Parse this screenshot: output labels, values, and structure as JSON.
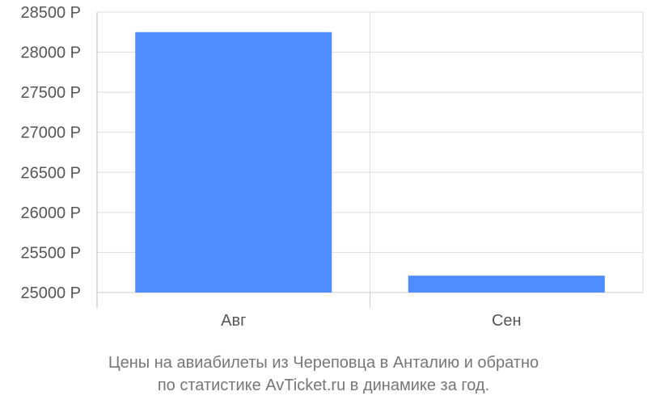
{
  "chart_data": {
    "type": "bar",
    "categories": [
      "Авг",
      "Сен"
    ],
    "values": [
      28250,
      25210
    ],
    "ylim": [
      25000,
      28500
    ],
    "yticks": [
      25000,
      25500,
      26000,
      26500,
      27000,
      27500,
      28000,
      28500
    ],
    "ytick_labels": [
      "25000 Р",
      "25500 Р",
      "26000 Р",
      "26500 Р",
      "27000 Р",
      "27500 Р",
      "28000 Р",
      "28500 Р"
    ],
    "grid": true,
    "bar_color": "#4e8cff",
    "caption_lines": [
      "Цены на авиабилеты из Череповца в Анталию и обратно",
      "по статистике AvTicket.ru в динамике за год."
    ]
  }
}
